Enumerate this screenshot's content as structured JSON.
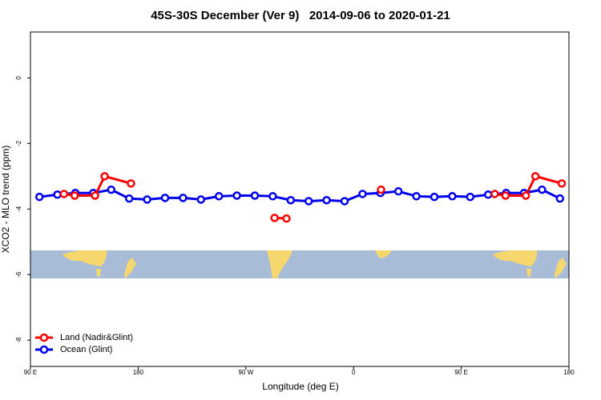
{
  "chart_data": {
    "type": "line",
    "title": "45S-30S December (Ver 9)   2014-09-06 to 2020-01-21",
    "x_label": "Longitude (deg E)",
    "y_label": "XCO2 - MLO trend (ppm)",
    "xlim": [
      90,
      540
    ],
    "xticks": [
      {
        "value": 90,
        "label": "90 E"
      },
      180,
      {
        "value": 270,
        "label": "90 W"
      },
      {
        "value": 360,
        "label": "0"
      },
      {
        "value": 450,
        "label": "90 E"
      },
      {
        "value": 540,
        "label": "180"
      }
    ],
    "ylim": [
      -8.8,
      1.4
    ],
    "yticks": [
      0,
      -2,
      -4,
      -6,
      -8
    ],
    "legend": "bottom-left",
    "series": [
      {
        "name": "Land (Nadir&Glint)",
        "color": "#ff0000",
        "x": [
          118,
          127,
          144,
          152,
          174,
          null,
          294,
          304,
          null,
          383,
          null,
          478,
          487,
          504,
          512,
          534
        ],
        "values": [
          -3.54,
          -3.59,
          -3.59,
          -3.0,
          -3.22,
          null,
          -4.27,
          -4.29,
          null,
          -3.41,
          null,
          -3.54,
          -3.59,
          -3.59,
          -3.0,
          -3.22
        ]
      },
      {
        "name": "Ocean (Glint)",
        "color": "#0000ee",
        "x": [
          97.5,
          112.5,
          127.5,
          142.5,
          157.5,
          172.5,
          187.5,
          202.5,
          217.5,
          232.5,
          247.5,
          262.5,
          277.5,
          292.5,
          307.5,
          322.5,
          337.5,
          352.5,
          367.5,
          382.5,
          397.5,
          412.5,
          427.5,
          442.5,
          457.5,
          472.5,
          487.5,
          502.5,
          517.5,
          532.5
        ],
        "values": [
          -3.63,
          -3.56,
          -3.51,
          -3.51,
          -3.41,
          -3.68,
          -3.71,
          -3.66,
          -3.66,
          -3.71,
          -3.61,
          -3.59,
          -3.59,
          -3.61,
          -3.73,
          -3.76,
          -3.73,
          -3.76,
          -3.54,
          -3.51,
          -3.46,
          -3.61,
          -3.63,
          -3.61,
          -3.63,
          -3.56,
          -3.51,
          -3.51,
          -3.41,
          -3.68
        ]
      }
    ]
  }
}
